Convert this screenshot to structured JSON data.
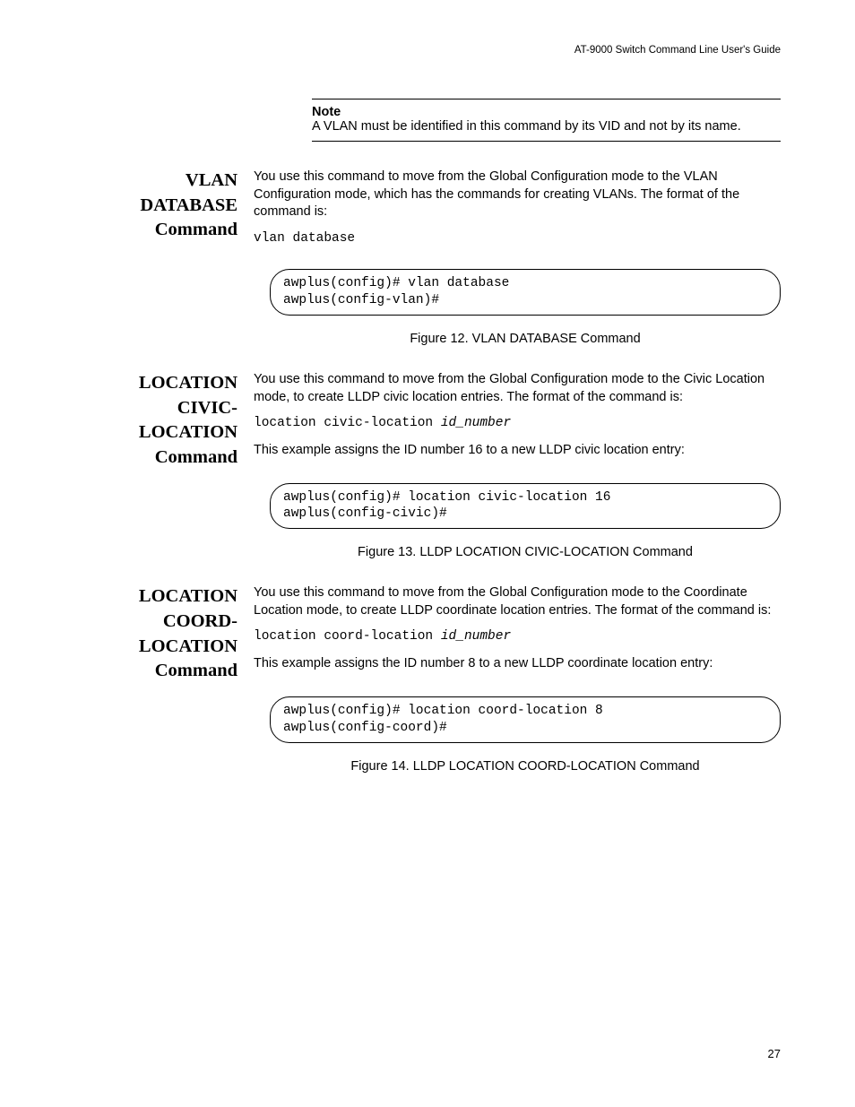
{
  "header": "AT-9000 Switch Command Line User's Guide",
  "note": {
    "label": "Note",
    "text": "A VLAN must be identified in this command by its VID and not by its name."
  },
  "sections": [
    {
      "heading_lines": [
        "VLAN",
        "DATABASE",
        "Command"
      ],
      "intro": "You use this command to move from the Global Configuration mode to the VLAN Configuration mode, which has the commands for creating VLANs. The format of the command is:",
      "cmd": "vlan database",
      "cmd_param": "",
      "example_intro": "",
      "terminal": "awplus(config)# vlan database\nawplus(config-vlan)#",
      "caption": "Figure 12. VLAN DATABASE Command"
    },
    {
      "heading_lines": [
        "LOCATION",
        "CIVIC-",
        "LOCATION",
        "Command"
      ],
      "intro": "You use this command to move from the Global Configuration mode to the Civic Location mode, to create LLDP civic location entries. The format of the command is:",
      "cmd": "location civic-location ",
      "cmd_param": "id_number",
      "example_intro": "This example assigns the ID number 16 to a new LLDP civic location entry:",
      "terminal": "awplus(config)# location civic-location 16\nawplus(config-civic)#",
      "caption": "Figure 13. LLDP LOCATION CIVIC-LOCATION Command"
    },
    {
      "heading_lines": [
        "LOCATION",
        "COORD-",
        "LOCATION",
        "Command"
      ],
      "intro": "You use this command to move from the Global Configuration mode to the Coordinate Location mode, to create LLDP coordinate location entries. The format of the command is:",
      "cmd": "location coord-location ",
      "cmd_param": "id_number",
      "example_intro": "This example assigns the ID number 8 to a new LLDP coordinate location entry:",
      "terminal": "awplus(config)# location coord-location 8\nawplus(config-coord)#",
      "caption": "Figure 14. LLDP LOCATION COORD-LOCATION Command"
    }
  ],
  "page_number": "27"
}
